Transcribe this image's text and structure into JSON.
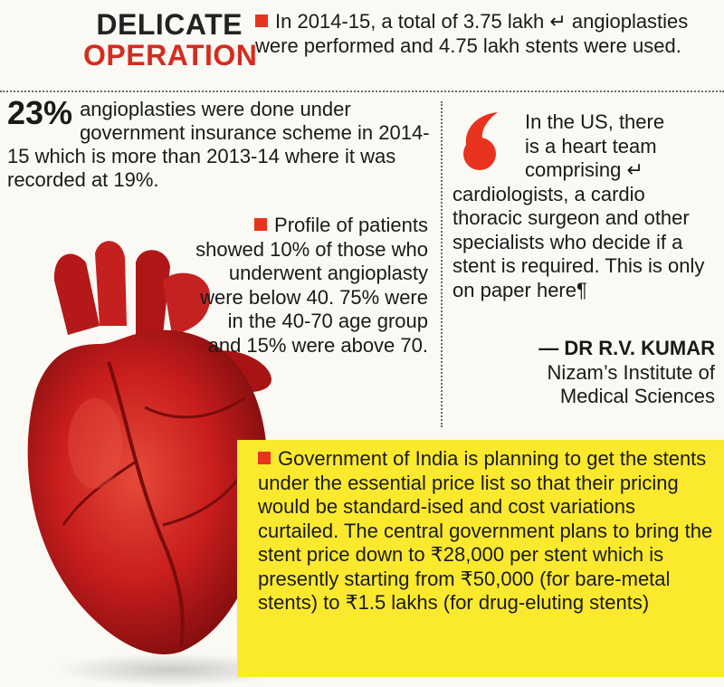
{
  "header": {
    "title_line1": "DELICATE",
    "title_line2": "OPERATION",
    "intro": "In 2014-15, a total of 3.75 lakh ↵ angioplasties were performed and 4.75 lakh stents were used."
  },
  "insurance_stat": {
    "number": "23%",
    "text": "angioplasties were done under government insurance scheme in 2014-15 which is more than 2013-14 where it was recorded at 19%."
  },
  "profile": {
    "text": "Profile of patients showed 10% of those who underwent angioplasty were below 40. 75% were in the 40-70 age group and 15% were above 70."
  },
  "quote": {
    "lines_indented": [
      "In the US, there",
      "is a heart team",
      "comprising ↵"
    ],
    "lines_full": "cardiologists, a cardio thoracic surgeon and other specialists who decide if a stent is required. This is only on paper here¶",
    "author": "— DR R.V. KUMAR",
    "affiliation_line1": "Nizam’s Institute of",
    "affiliation_line2": "Medical Sciences"
  },
  "government": {
    "text": "Government of India is planning to get the stents under the essential price list so that their pricing would be standard-ised and cost variations curtailed. The central government plans to bring the stent price down to ₹28,000 per stent which is presently starting from ₹50,000 (for bare-metal stents) to ₹1.5 lakhs (for drug-eluting stents)"
  },
  "colors": {
    "accent_red": "#e8331f",
    "title_red": "#d52b1e",
    "highlight_yellow": "#fbe92e",
    "heart_red": "#c81d1d"
  }
}
